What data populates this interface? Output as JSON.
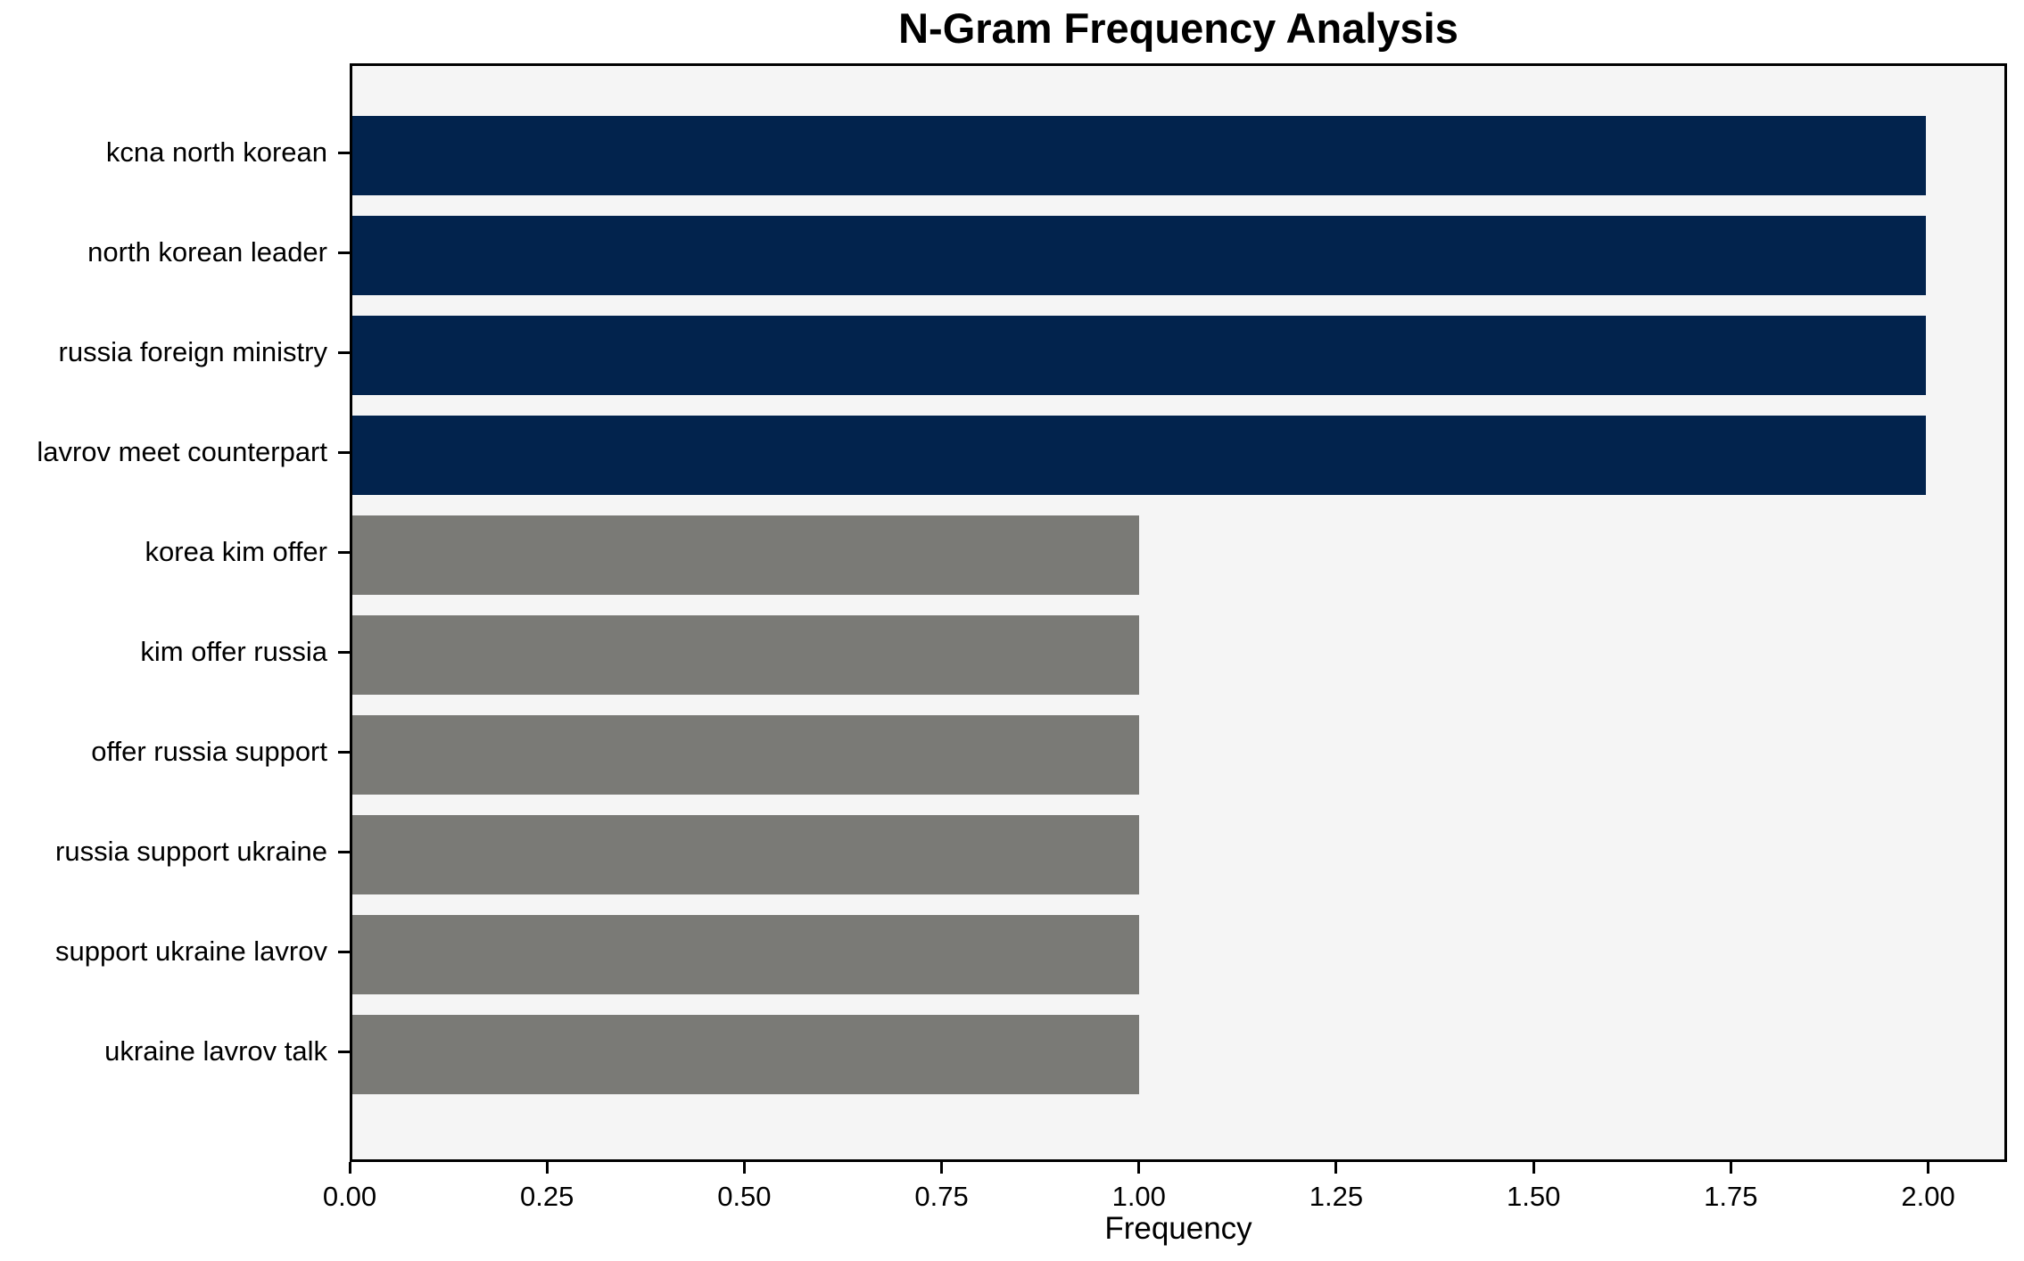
{
  "chart_data": {
    "type": "bar",
    "orientation": "horizontal",
    "title": "N-Gram Frequency Analysis",
    "xlabel": "Frequency",
    "ylabel": "",
    "categories": [
      "kcna north korean",
      "north korean leader",
      "russia foreign ministry",
      "lavrov meet counterpart",
      "korea kim offer",
      "kim offer russia",
      "offer russia support",
      "russia support ukraine",
      "support ukraine lavrov",
      "ukraine lavrov talk"
    ],
    "values": [
      2,
      2,
      2,
      2,
      1,
      1,
      1,
      1,
      1,
      1
    ],
    "xlim": [
      0,
      2.1
    ],
    "xtick_labels": [
      "0.00",
      "0.25",
      "0.50",
      "0.75",
      "1.00",
      "1.25",
      "1.50",
      "1.75",
      "2.00"
    ],
    "xtick_values": [
      0,
      0.25,
      0.5,
      0.75,
      1.0,
      1.25,
      1.5,
      1.75,
      2.0
    ],
    "grid": false,
    "legend": null,
    "colors": {
      "high_freq_bar": "#02234d",
      "low_freq_bar": "#7a7a76",
      "plot_background": "#f5f5f5",
      "figure_background": "#ffffff",
      "spine": "#000000",
      "text": "#000000"
    },
    "bar_colors": [
      "#02234d",
      "#02234d",
      "#02234d",
      "#02234d",
      "#7a7a76",
      "#7a7a76",
      "#7a7a76",
      "#7a7a76",
      "#7a7a76",
      "#7a7a76"
    ]
  }
}
